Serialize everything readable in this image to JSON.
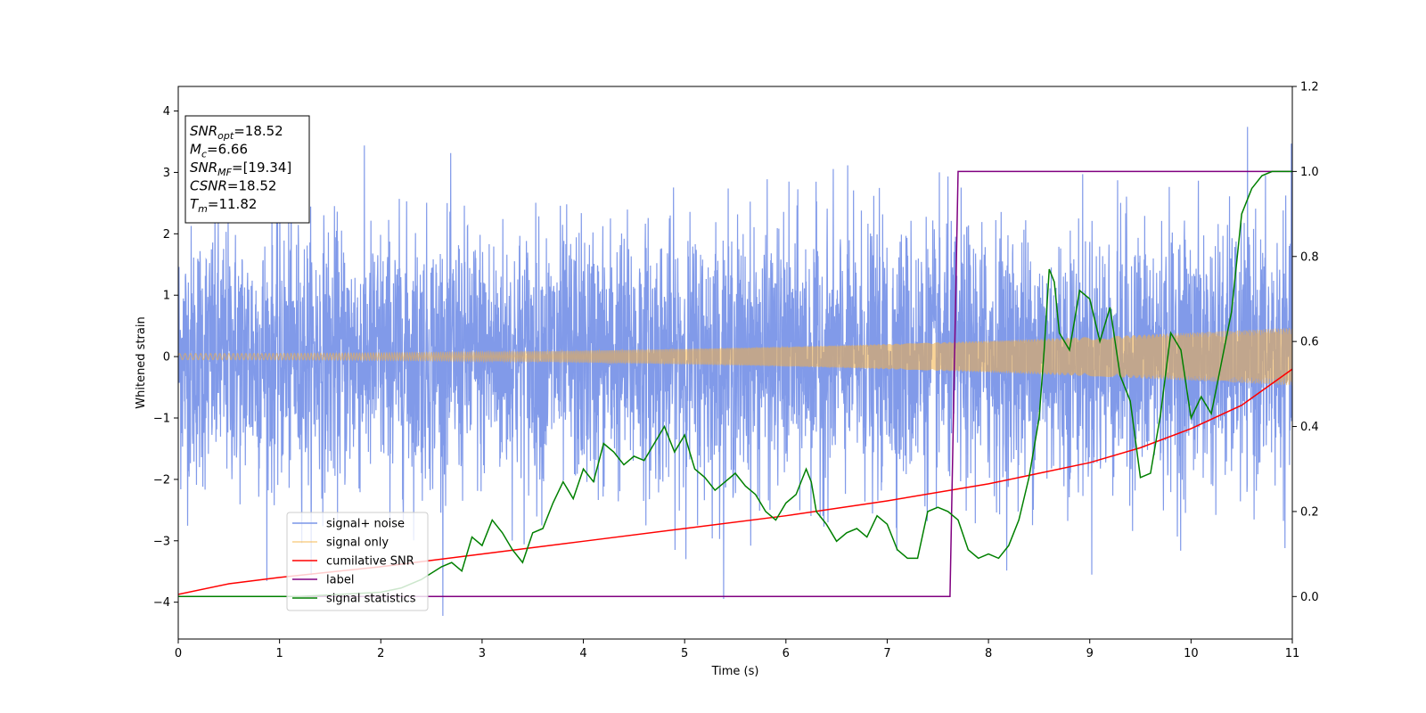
{
  "chart_data": {
    "type": "line",
    "xlabel": "Time (s)",
    "ylabel": "Whitened strain",
    "xlim": [
      0,
      11
    ],
    "ylim_left": [
      -4.6,
      4.4
    ],
    "ylim_right": [
      -0.1,
      1.2
    ],
    "x_ticks": [
      "0",
      "1",
      "2",
      "3",
      "4",
      "5",
      "6",
      "7",
      "8",
      "9",
      "10",
      "11"
    ],
    "y_ticks_left": [
      "−4",
      "−3",
      "−2",
      "−1",
      "0",
      "1",
      "2",
      "3",
      "4"
    ],
    "y_ticks_right": [
      "0.0",
      "0.2",
      "0.4",
      "0.6",
      "0.8",
      "1.0",
      "1.2"
    ],
    "legend": {
      "placement": "lower-left",
      "entries": [
        "signal+ noise",
        "signal only",
        "cumilative SNR",
        "label",
        "signal statistics"
      ]
    },
    "annotation": {
      "lines": [
        {
          "main": "SNR",
          "sub": "opt",
          "value": "=18.52"
        },
        {
          "main": "M",
          "sub": "c",
          "value": "=6.66"
        },
        {
          "main": "SNR",
          "sub": "MF",
          "value": "=[19.34]"
        },
        {
          "main": "CSNR",
          "sub": "",
          "value": "=18.52"
        },
        {
          "main": "T",
          "sub": "m",
          "value": "=11.82"
        }
      ]
    },
    "series": [
      {
        "name": "signal+ noise",
        "axis": "left",
        "color": "#7a95e8",
        "kind": "noise",
        "noise_std": 1.05,
        "samples": 4400
      },
      {
        "name": "signal only",
        "axis": "left",
        "color": "#f5b041",
        "kind": "chirp",
        "amp_start": 0.05,
        "amp_end": 0.47
      },
      {
        "name": "cumilative SNR",
        "axis": "right",
        "color": "#ff0000",
        "x": [
          0,
          0.5,
          1,
          2,
          3,
          4,
          5,
          6,
          7,
          8,
          9,
          9.5,
          10,
          10.5,
          11
        ],
        "y": [
          0.005,
          0.03,
          0.045,
          0.07,
          0.1,
          0.13,
          0.16,
          0.19,
          0.225,
          0.265,
          0.315,
          0.35,
          0.395,
          0.45,
          0.535
        ]
      },
      {
        "name": "label",
        "axis": "right",
        "color": "#800080",
        "x": [
          0,
          7.62,
          7.7,
          11
        ],
        "y": [
          0.0,
          0.0,
          1.0,
          1.0
        ]
      },
      {
        "name": "signal statistics",
        "axis": "right",
        "color": "#008000",
        "x": [
          0,
          0.4,
          0.8,
          1.2,
          1.6,
          2.0,
          2.2,
          2.4,
          2.6,
          2.7,
          2.8,
          2.9,
          3.0,
          3.1,
          3.2,
          3.3,
          3.4,
          3.5,
          3.6,
          3.7,
          3.8,
          3.9,
          4.0,
          4.1,
          4.2,
          4.3,
          4.4,
          4.5,
          4.6,
          4.7,
          4.8,
          4.9,
          5.0,
          5.1,
          5.2,
          5.3,
          5.4,
          5.5,
          5.6,
          5.7,
          5.8,
          5.9,
          6.0,
          6.1,
          6.2,
          6.25,
          6.3,
          6.4,
          6.5,
          6.6,
          6.7,
          6.8,
          6.9,
          7.0,
          7.1,
          7.2,
          7.3,
          7.4,
          7.5,
          7.6,
          7.7,
          7.8,
          7.9,
          8.0,
          8.1,
          8.2,
          8.3,
          8.4,
          8.5,
          8.55,
          8.6,
          8.65,
          8.7,
          8.8,
          8.9,
          9.0,
          9.1,
          9.2,
          9.3,
          9.4,
          9.5,
          9.6,
          9.7,
          9.8,
          9.9,
          10.0,
          10.1,
          10.2,
          10.3,
          10.4,
          10.5,
          10.6,
          10.7,
          10.8,
          11
        ],
        "y": [
          0.0,
          0.0,
          0.0,
          0.0,
          0.005,
          0.01,
          0.02,
          0.04,
          0.07,
          0.08,
          0.06,
          0.14,
          0.12,
          0.18,
          0.15,
          0.11,
          0.08,
          0.15,
          0.16,
          0.22,
          0.27,
          0.23,
          0.3,
          0.27,
          0.36,
          0.34,
          0.31,
          0.33,
          0.32,
          0.36,
          0.4,
          0.34,
          0.38,
          0.3,
          0.28,
          0.25,
          0.27,
          0.29,
          0.26,
          0.24,
          0.2,
          0.18,
          0.22,
          0.24,
          0.3,
          0.27,
          0.2,
          0.17,
          0.13,
          0.15,
          0.16,
          0.14,
          0.19,
          0.17,
          0.11,
          0.09,
          0.09,
          0.2,
          0.21,
          0.2,
          0.18,
          0.11,
          0.09,
          0.1,
          0.09,
          0.12,
          0.18,
          0.28,
          0.42,
          0.58,
          0.77,
          0.74,
          0.62,
          0.58,
          0.72,
          0.7,
          0.6,
          0.68,
          0.52,
          0.46,
          0.28,
          0.29,
          0.43,
          0.62,
          0.58,
          0.42,
          0.47,
          0.43,
          0.55,
          0.67,
          0.9,
          0.96,
          0.99,
          1.0,
          1.0
        ]
      }
    ]
  }
}
